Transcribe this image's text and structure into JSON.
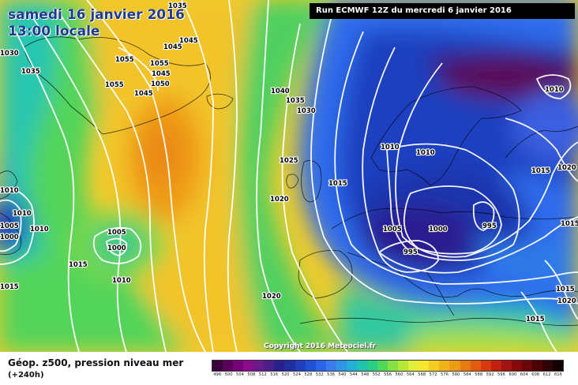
{
  "header": {
    "date": "samedi 16 janvier 2016",
    "time": "13:00 locale",
    "run": "Run ECMWF 12Z du mercredi 6 janvier 2016"
  },
  "copyright": "Copyright 2016 Meteociel.fr",
  "legend": {
    "title": "Géop. z500, pression niveau mer",
    "subtitle": "(+240h)",
    "colors": [
      "#3c003c",
      "#5a005a",
      "#780078",
      "#8c0a8c",
      "#6a1a8a",
      "#4a1f8a",
      "#2a1f8f",
      "#1f2fa0",
      "#1f3fbf",
      "#2050d8",
      "#2d65ea",
      "#3a7cf0",
      "#2f95e8",
      "#23b0d6",
      "#1ec4b0",
      "#29cf86",
      "#4fd85a",
      "#86e040",
      "#b6e83a",
      "#e2ee3a",
      "#f6e62e",
      "#f3cd22",
      "#f0b31a",
      "#ed9a14",
      "#e97a10",
      "#e45a0e",
      "#d83a0e",
      "#c2200e",
      "#a3120e",
      "#86080a",
      "#6a0508",
      "#4c0306",
      "#2f0204",
      "#140102"
    ],
    "labels": [
      "496",
      "500",
      "504",
      "508",
      "512",
      "516",
      "520",
      "524",
      "528",
      "532",
      "536",
      "540",
      "544",
      "548",
      "552",
      "556",
      "560",
      "564",
      "568",
      "572",
      "576",
      "580",
      "584",
      "588",
      "592",
      "596",
      "600",
      "604",
      "608",
      "612",
      "616"
    ]
  },
  "isobars": [
    {
      "label": "1035"
    },
    {
      "label": "1030"
    },
    {
      "label": "1035"
    },
    {
      "label": "1045"
    },
    {
      "label": "1045"
    },
    {
      "label": "1055"
    },
    {
      "label": "1055"
    },
    {
      "label": "1045"
    },
    {
      "label": "1055"
    },
    {
      "label": "1050"
    },
    {
      "label": "1045"
    },
    {
      "label": "1040"
    },
    {
      "label": "1035"
    },
    {
      "label": "1030"
    },
    {
      "label": "1025"
    },
    {
      "label": "1020"
    },
    {
      "label": "1015"
    },
    {
      "label": "1010"
    },
    {
      "label": "1010"
    },
    {
      "label": "1010"
    },
    {
      "label": "1005"
    },
    {
      "label": "1000"
    },
    {
      "label": "995"
    },
    {
      "label": "995"
    },
    {
      "label": "1010"
    },
    {
      "label": "1015"
    },
    {
      "label": "1020"
    },
    {
      "label": "1015"
    },
    {
      "label": "1015"
    },
    {
      "label": "1020"
    },
    {
      "label": "1015"
    },
    {
      "label": "1010"
    },
    {
      "label": "1005"
    },
    {
      "label": "1000"
    },
    {
      "label": "1010"
    },
    {
      "label": "1015"
    },
    {
      "label": "1010"
    },
    {
      "label": "1005"
    },
    {
      "label": "1000"
    },
    {
      "label": "1020"
    },
    {
      "label": "1015"
    }
  ]
}
